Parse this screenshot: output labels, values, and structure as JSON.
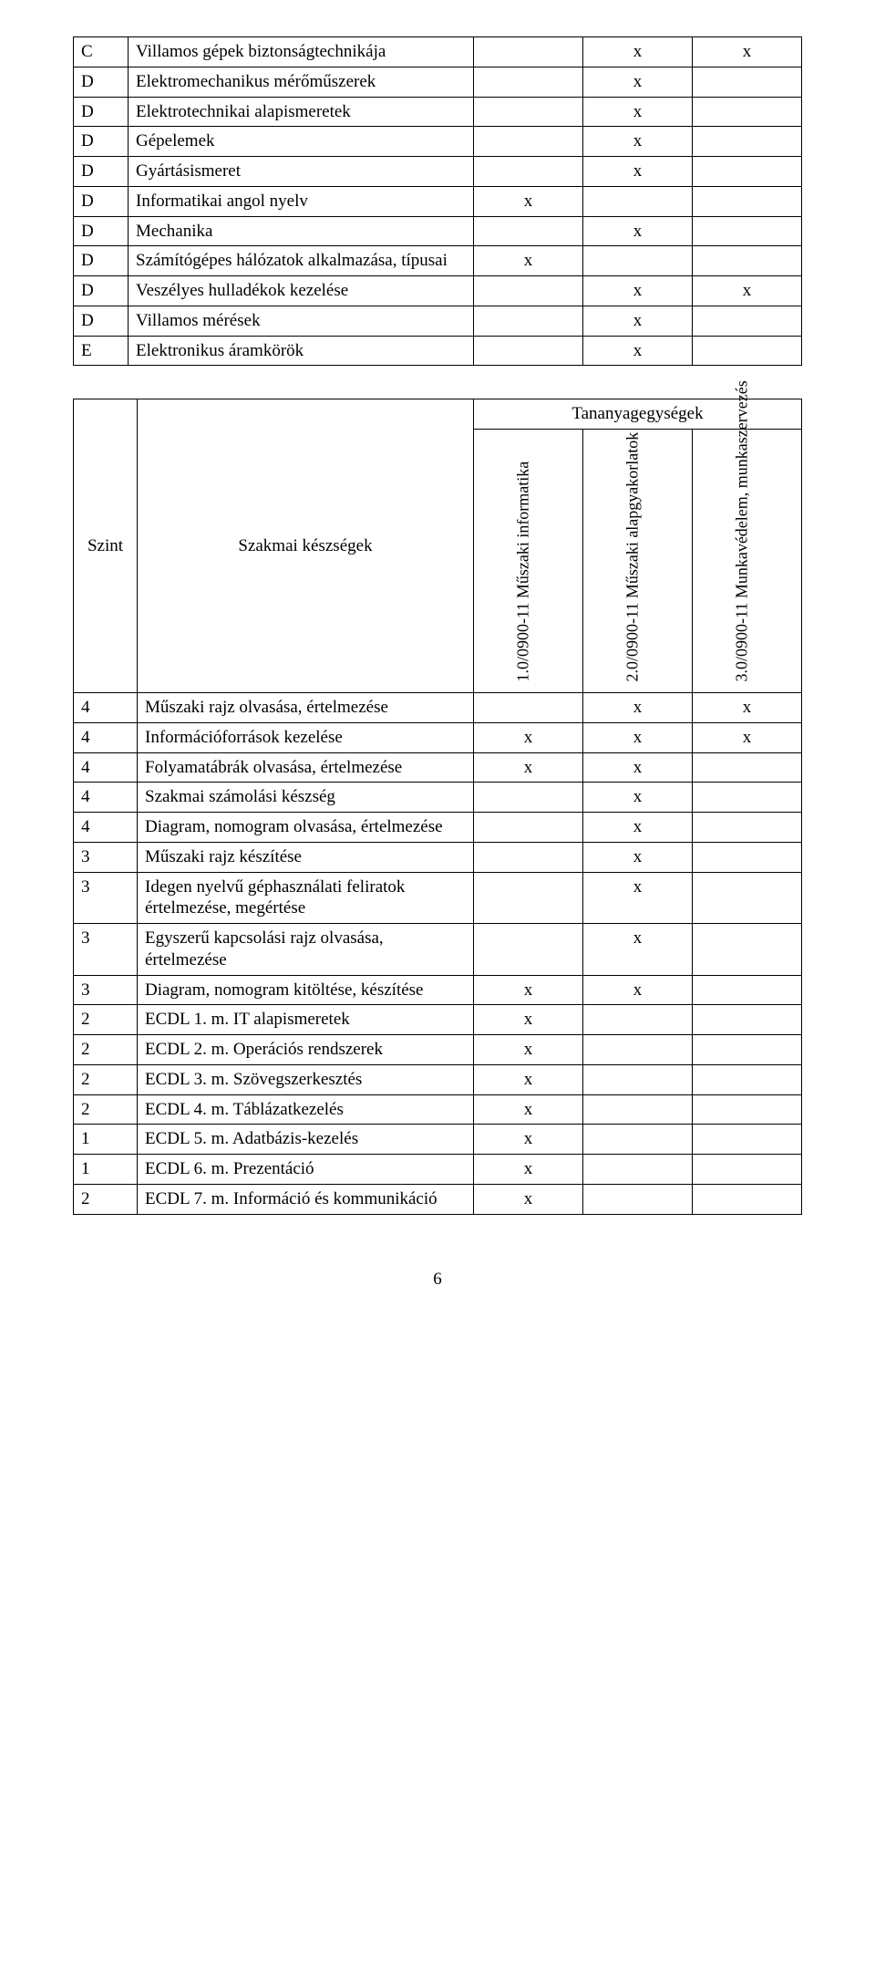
{
  "marks": {
    "x": "x"
  },
  "table1": {
    "rows": [
      {
        "code": "C",
        "name": "Villamos gépek biztonságtechnikája",
        "c1": "",
        "c2": "x",
        "c3": "x"
      },
      {
        "code": "D",
        "name": "Elektromechanikus mérőműszerek",
        "c1": "",
        "c2": "x",
        "c3": ""
      },
      {
        "code": "D",
        "name": "Elektrotechnikai alapismeretek",
        "c1": "",
        "c2": "x",
        "c3": ""
      },
      {
        "code": "D",
        "name": "Gépelemek",
        "c1": "",
        "c2": "x",
        "c3": ""
      },
      {
        "code": "D",
        "name": "Gyártásismeret",
        "c1": "",
        "c2": "x",
        "c3": ""
      },
      {
        "code": "D",
        "name": "Informatikai angol nyelv",
        "c1": "x",
        "c2": "",
        "c3": ""
      },
      {
        "code": "D",
        "name": "Mechanika",
        "c1": "",
        "c2": "x",
        "c3": ""
      },
      {
        "code": "D",
        "name": "Számítógépes hálózatok alkalmazása, típusai",
        "c1": "x",
        "c2": "",
        "c3": ""
      },
      {
        "code": "D",
        "name": "Veszélyes hulladékok kezelése",
        "c1": "",
        "c2": "x",
        "c3": "x"
      },
      {
        "code": "D",
        "name": "Villamos mérések",
        "c1": "",
        "c2": "x",
        "c3": ""
      },
      {
        "code": "E",
        "name": "Elektronikus áramkörök",
        "c1": "",
        "c2": "x",
        "c3": ""
      }
    ]
  },
  "table2": {
    "header_tananyag": "Tananyagegységek",
    "header_szint": "Szint",
    "header_szakmai": "Szakmai készségek",
    "col_labels": {
      "c1": "1.0/0900-11 Műszaki informatika",
      "c2": "2.0/0900-11 Műszaki alapgyakorlatok",
      "c3": "3.0/0900-11 Munkavédelem, munkaszervezés"
    },
    "rows": [
      {
        "szint": "4",
        "name": "Műszaki rajz olvasása, értelmezése",
        "c1": "",
        "c2": "x",
        "c3": "x"
      },
      {
        "szint": "4",
        "name": "Információforrások kezelése",
        "c1": "x",
        "c2": "x",
        "c3": "x"
      },
      {
        "szint": "4",
        "name": "Folyamatábrák olvasása, értelmezése",
        "c1": "x",
        "c2": "x",
        "c3": ""
      },
      {
        "szint": "4",
        "name": "Szakmai számolási készség",
        "c1": "",
        "c2": "x",
        "c3": ""
      },
      {
        "szint": "4",
        "name": "Diagram, nomogram olvasása, értelmezése",
        "c1": "",
        "c2": "x",
        "c3": ""
      },
      {
        "szint": "3",
        "name": "Műszaki rajz készítése",
        "c1": "",
        "c2": "x",
        "c3": ""
      },
      {
        "szint": "3",
        "name": "Idegen nyelvű géphasználati feliratok értelmezése, megértése",
        "c1": "",
        "c2": "x",
        "c3": ""
      },
      {
        "szint": "3",
        "name": "Egyszerű kapcsolási rajz olvasása, értelmezése",
        "c1": "",
        "c2": "x",
        "c3": ""
      },
      {
        "szint": "3",
        "name": "Diagram, nomogram kitöltése, készítése",
        "c1": "x",
        "c2": "x",
        "c3": ""
      },
      {
        "szint": "2",
        "name": "ECDL 1. m. IT alapismeretek",
        "c1": "x",
        "c2": "",
        "c3": ""
      },
      {
        "szint": "2",
        "name": "ECDL 2. m. Operációs rendszerek",
        "c1": "x",
        "c2": "",
        "c3": ""
      },
      {
        "szint": "2",
        "name": "ECDL 3. m. Szövegszerkesztés",
        "c1": "x",
        "c2": "",
        "c3": ""
      },
      {
        "szint": "2",
        "name": "ECDL 4. m. Táblázatkezelés",
        "c1": "x",
        "c2": "",
        "c3": ""
      },
      {
        "szint": "1",
        "name": "ECDL 5. m. Adatbázis-kezelés",
        "c1": "x",
        "c2": "",
        "c3": ""
      },
      {
        "szint": "1",
        "name": "ECDL 6. m. Prezentáció",
        "c1": "x",
        "c2": "",
        "c3": ""
      },
      {
        "szint": "2",
        "name": "ECDL 7. m. Információ és kommunikáció",
        "c1": "x",
        "c2": "",
        "c3": ""
      }
    ]
  },
  "page_number": "6"
}
